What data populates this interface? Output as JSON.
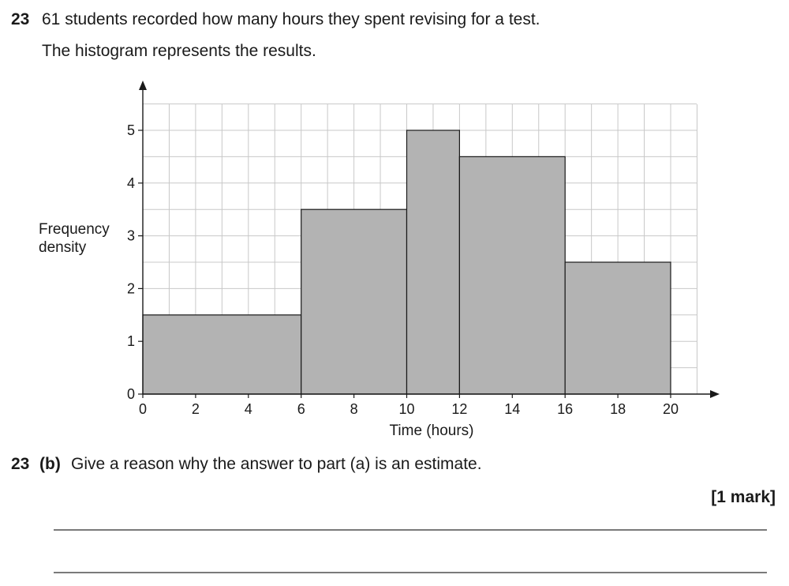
{
  "question": {
    "number": "23",
    "text": "61 students recorded how many hours they spent revising for a test.",
    "text2": "The histogram represents the results."
  },
  "part_b": {
    "number": "23",
    "part_label": "(b)",
    "text": "Give a reason why the answer to part (a) is an estimate.",
    "marks": "[1 mark]"
  },
  "chart_data": {
    "type": "bar",
    "title": "",
    "xlabel": "Time (hours)",
    "ylabel_lines": [
      "Frequency",
      "density"
    ],
    "xlim": [
      0,
      20
    ],
    "ylim": [
      0,
      5
    ],
    "x_ticks": [
      0,
      2,
      4,
      6,
      8,
      10,
      12,
      14,
      16,
      18,
      20
    ],
    "y_ticks": [
      0,
      1,
      2,
      3,
      4,
      5
    ],
    "grid": true,
    "bar_color": "#b3b3b3",
    "bins": [
      {
        "from": 0,
        "to": 6,
        "value": 1.5
      },
      {
        "from": 6,
        "to": 10,
        "value": 3.5
      },
      {
        "from": 10,
        "to": 12,
        "value": 5
      },
      {
        "from": 12,
        "to": 16,
        "value": 4.5
      },
      {
        "from": 16,
        "to": 20,
        "value": 2.5
      }
    ]
  }
}
